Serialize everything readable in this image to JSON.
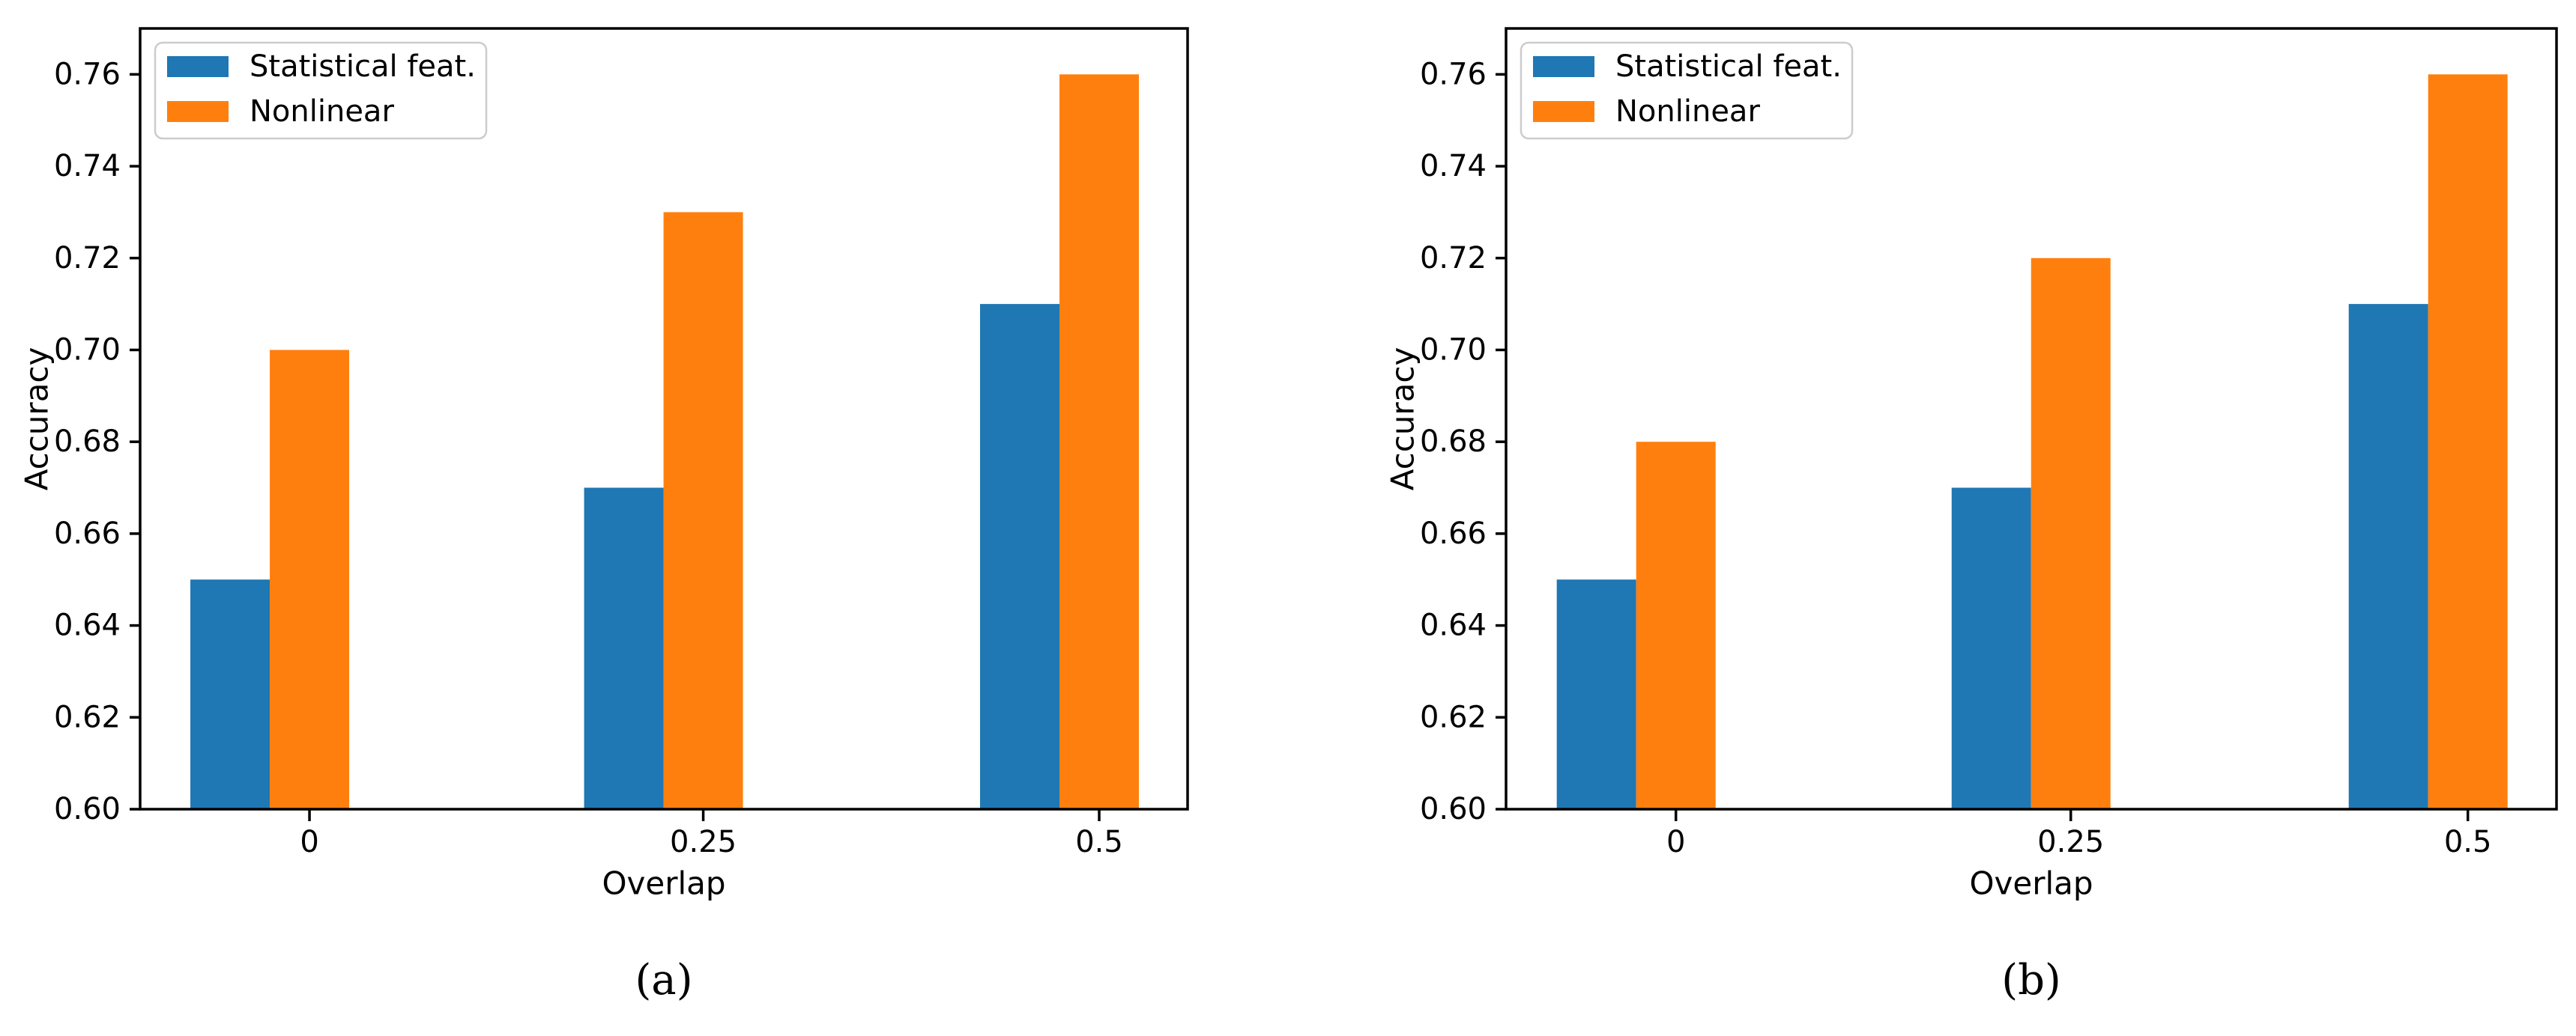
{
  "page": {
    "background": "#ffffff"
  },
  "chart_data": [
    {
      "type": "bar",
      "caption": "(a)",
      "title": "",
      "xlabel": "Overlap",
      "ylabel": "Accuracy",
      "categories": [
        "0",
        "0.25",
        "0.5"
      ],
      "series": [
        {
          "name": "Statistical feat.",
          "color": "#1f77b4",
          "values": [
            0.65,
            0.67,
            0.71
          ]
        },
        {
          "name": "Nonlinear",
          "color": "#ff7f0e",
          "values": [
            0.7,
            0.73,
            0.76
          ]
        }
      ],
      "ylim": [
        0.6,
        0.77
      ],
      "yticks": [
        "0.60",
        "0.62",
        "0.64",
        "0.66",
        "0.68",
        "0.70",
        "0.72",
        "0.74",
        "0.76"
      ],
      "grid": false,
      "legend_position": "upper left"
    },
    {
      "type": "bar",
      "caption": "(b)",
      "title": "",
      "xlabel": "Overlap",
      "ylabel": "Accuracy",
      "categories": [
        "0",
        "0.25",
        "0.5"
      ],
      "series": [
        {
          "name": "Statistical feat.",
          "color": "#1f77b4",
          "values": [
            0.65,
            0.67,
            0.71
          ]
        },
        {
          "name": "Nonlinear",
          "color": "#ff7f0e",
          "values": [
            0.68,
            0.72,
            0.76
          ]
        }
      ],
      "ylim": [
        0.6,
        0.77
      ],
      "yticks": [
        "0.60",
        "0.62",
        "0.64",
        "0.66",
        "0.68",
        "0.70",
        "0.72",
        "0.74",
        "0.76"
      ],
      "grid": false,
      "legend_position": "upper left"
    }
  ],
  "style_colors": {
    "axis": "#000000",
    "text": "#000000",
    "legend_border": "#cccccc",
    "legend_bg": "#ffffff"
  }
}
